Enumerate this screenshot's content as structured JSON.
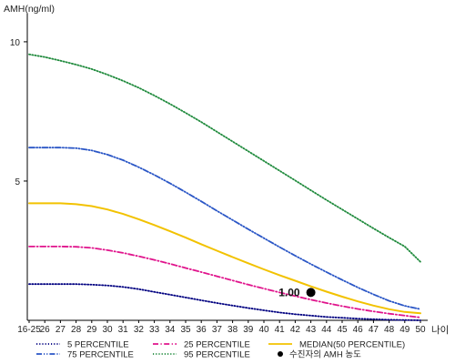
{
  "chart_data": {
    "type": "line",
    "ylabel": "AMH(ng/ml)",
    "xlabel": "나이",
    "ylim": [
      0,
      11.5
    ],
    "y_ticks": [
      {
        "value": 10,
        "label": "10"
      },
      {
        "value": 5,
        "label": "5"
      }
    ],
    "categories": [
      "16-25",
      "26",
      "27",
      "28",
      "29",
      "30",
      "31",
      "32",
      "33",
      "34",
      "35",
      "36",
      "37",
      "38",
      "39",
      "40",
      "41",
      "42",
      "43",
      "44",
      "45",
      "46",
      "47",
      "48",
      "49",
      "50"
    ],
    "grid": false,
    "series": [
      {
        "name": "5 PERCENTILE",
        "color": "#000080",
        "style": "dotted",
        "values": [
          1.3,
          1.3,
          1.3,
          1.3,
          1.28,
          1.25,
          1.2,
          1.12,
          1.02,
          0.92,
          0.82,
          0.72,
          0.62,
          0.53,
          0.44,
          0.36,
          0.28,
          0.22,
          0.17,
          0.12,
          0.09,
          0.06,
          0.04,
          0.02,
          0.01,
          0.0
        ]
      },
      {
        "name": "25 PERCENTILE",
        "color": "#e0148c",
        "style": "dashdot",
        "values": [
          2.65,
          2.65,
          2.65,
          2.64,
          2.6,
          2.52,
          2.42,
          2.3,
          2.17,
          2.03,
          1.88,
          1.73,
          1.58,
          1.43,
          1.28,
          1.14,
          1.0,
          0.87,
          0.74,
          0.62,
          0.51,
          0.41,
          0.32,
          0.24,
          0.17,
          0.1
        ]
      },
      {
        "name": "MEDIAN(50 PERCENTILE)",
        "color": "#f2c200",
        "style": "solid",
        "values": [
          4.2,
          4.2,
          4.2,
          4.17,
          4.1,
          3.98,
          3.82,
          3.63,
          3.42,
          3.2,
          2.97,
          2.73,
          2.5,
          2.27,
          2.05,
          1.83,
          1.62,
          1.42,
          1.22,
          1.03,
          0.85,
          0.68,
          0.53,
          0.4,
          0.3,
          0.25
        ]
      },
      {
        "name": "75 PERCENTILE",
        "color": "#2a56c6",
        "style": "dashdotdot",
        "values": [
          6.2,
          6.2,
          6.2,
          6.18,
          6.1,
          5.95,
          5.75,
          5.5,
          5.22,
          4.92,
          4.6,
          4.27,
          3.93,
          3.6,
          3.27,
          2.95,
          2.63,
          2.32,
          2.02,
          1.73,
          1.45,
          1.18,
          0.93,
          0.7,
          0.52,
          0.4
        ]
      },
      {
        "name": "95 PERCENTILE",
        "color": "#1f8a3c",
        "style": "dotted",
        "values": [
          9.55,
          9.45,
          9.32,
          9.18,
          9.02,
          8.82,
          8.6,
          8.35,
          8.07,
          7.77,
          7.45,
          7.12,
          6.77,
          6.42,
          6.07,
          5.72,
          5.37,
          5.02,
          4.67,
          4.32,
          3.98,
          3.64,
          3.3,
          2.97,
          2.65,
          2.1
        ]
      }
    ],
    "marker": {
      "name": "수진자의 AMH 농도",
      "category": "43",
      "value": 1.0,
      "label": "1.00",
      "color": "#000000"
    },
    "legend": {
      "placement": "bottom",
      "order": [
        "5 PERCENTILE",
        "25 PERCENTILE",
        "MEDIAN(50 PERCENTILE)",
        "75 PERCENTILE",
        "95 PERCENTILE",
        "수진자의 AMH 농도"
      ]
    }
  }
}
